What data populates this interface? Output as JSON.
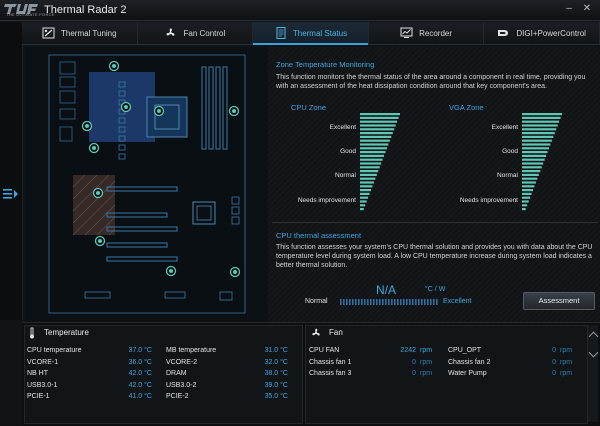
{
  "app": {
    "title": "Thermal Radar 2",
    "logo_text": "THE ULTIMATE FORCE"
  },
  "tabs": [
    {
      "label": "Thermal Tuning",
      "icon": "thermal-tuning-icon"
    },
    {
      "label": "Fan Control",
      "icon": "fan-icon"
    },
    {
      "label": "Thermal Status",
      "icon": "document-icon",
      "active": true
    },
    {
      "label": "Recorder",
      "icon": "monitor-icon"
    },
    {
      "label": "DIGI+PowerControl",
      "icon": "digi-logo-icon"
    }
  ],
  "zone": {
    "heading": "Zone Temperature Monitoring",
    "desc1": "This function monitors the thermal status of the area around a component in real time, providing you",
    "desc2": "with an assessment of the heat dissipation condition around that key component's area.",
    "cpu_label": "CPU Zone",
    "vga_label": "VGA Zone",
    "levels": [
      "Excellent",
      "Good",
      "Normal",
      "Needs improvement"
    ]
  },
  "assessment": {
    "heading": "CPU thermal assessment",
    "desc1": "This function assesses your system's CPU thermal solution and provides you with data about the CPU",
    "desc2": "temperature level during system load. A low CPU temperature increase during system load indicates a",
    "desc3": "better thermal solution.",
    "value": "N/A",
    "unit": "°C / W",
    "scale_low": "Normal",
    "scale_high": "Excellent",
    "button": "Assessment"
  },
  "temperature": {
    "title": "Temperature",
    "rows": [
      {
        "name": "CPU temperature",
        "value": "37.0 °C",
        "name2": "MB temperature",
        "value2": "31.0 °C"
      },
      {
        "name": "VCORE-1",
        "value": "36.0 °C",
        "name2": "VCORE-2",
        "value2": "32.0 °C"
      },
      {
        "name": "NB HT",
        "value": "42.0 °C",
        "name2": "DRAM",
        "value2": "38.0 °C"
      },
      {
        "name": "USB3.0-1",
        "value": "42.0 °C",
        "name2": "USB3.0-2",
        "value2": "39.0 °C"
      },
      {
        "name": "PCIE-1",
        "value": "41.0 °C",
        "name2": "PCIE-2",
        "value2": "35.0 °C"
      }
    ]
  },
  "fan": {
    "title": "Fan",
    "rows": [
      {
        "name": "CPU FAN",
        "value": "2242",
        "unit": "rpm",
        "name2": "CPU_OPT",
        "value2": "0",
        "unit2": "rpm"
      },
      {
        "name": "Chassis fan 1",
        "value": "0",
        "unit": "rpm",
        "name2": "Chassis fan 2",
        "value2": "0",
        "unit2": "rpm"
      },
      {
        "name": "Chassis fan 3",
        "value": "0",
        "unit": "rpm",
        "name2": "Water Pump",
        "value2": "0",
        "unit2": "rpm"
      }
    ]
  },
  "colors": {
    "accent": "#3ca7de",
    "bar": "#5fc7b4",
    "panel": "#121518"
  }
}
